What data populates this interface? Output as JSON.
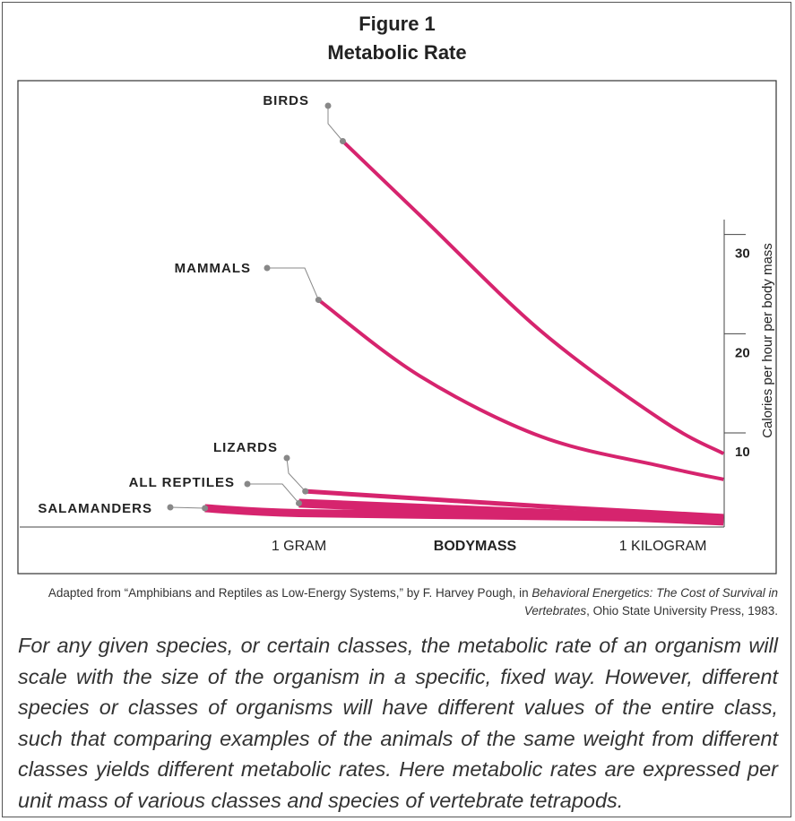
{
  "header": {
    "figure": "Figure 1",
    "title": "Metabolic Rate"
  },
  "chart_data": {
    "type": "line",
    "xlabel": "BODYMASS",
    "ylabel": "Calories per hour per body mass",
    "xscale": "log",
    "xlim": [
      0.005,
      3200
    ],
    "xticks": [
      {
        "value": 1,
        "label": "1 GRAM"
      },
      {
        "value": 1000,
        "label": "1 KILOGRAM"
      }
    ],
    "ylim": [
      2.5,
      47.5
    ],
    "yticks": [
      10,
      20,
      30
    ],
    "series": [
      {
        "name": "BIRDS",
        "color": "#d6246e",
        "x": [
          2.3,
          10,
          100,
          1000,
          3160
        ],
        "values": [
          41.4,
          33.9,
          22.2,
          13.2,
          9.9
        ]
      },
      {
        "name": "MAMMALS",
        "color": "#d6246e",
        "x": [
          1.45,
          10,
          100,
          1000,
          3160
        ],
        "values": [
          25.4,
          17.7,
          11.6,
          8.6,
          7.3
        ]
      },
      {
        "name": "LIZARDS",
        "color": "#d6246e",
        "x": [
          1.13,
          100,
          3160
        ],
        "values": [
          6.1,
          4.6,
          3.6
        ]
      },
      {
        "name": "ALL REPTILES",
        "color": "#d6246e",
        "x": [
          1,
          100,
          3160
        ],
        "values": [
          4.9,
          3.9,
          3.1
        ]
      },
      {
        "name": "SALAMANDERS",
        "color": "#d6246e",
        "x": [
          0.168,
          1,
          100,
          3160
        ],
        "values": [
          4.4,
          3.9,
          3.6,
          3.3
        ]
      }
    ]
  },
  "source": [
    "Adapted from “Amphibians and Reptiles as Low-Energy Systems,” by F. Harvey Pough, in ",
    "Behavioral Energetics: The Cost of Survival in Vertebrates",
    ", Ohio State University Press, 1983."
  ],
  "paragraph": "For any given species, or certain classes, the metabolic rate of an organism will scale with the size of the organism in a specific, fixed way. However, different species or classes of organisms will have different values of the entire class, such that comparing examples of the animals of the same weight from different classes yields different metabolic rates. Here metabolic rates are expressed per unit mass of various classes and species of vertebrate tetrapods."
}
